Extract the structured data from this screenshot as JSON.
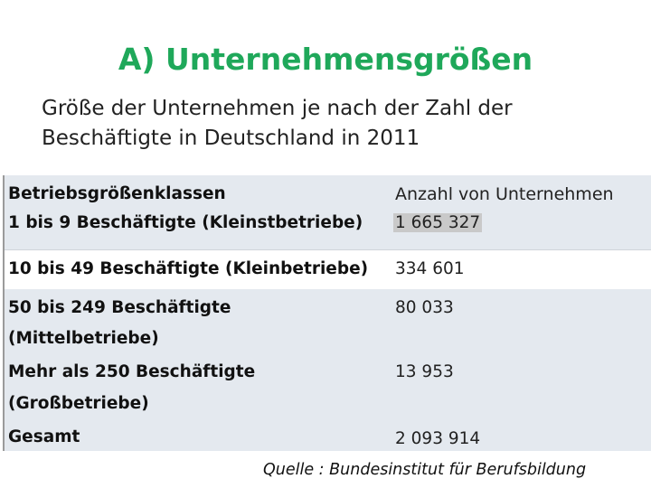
{
  "title": "A) Unternehmensgrößen",
  "subtitle": {
    "line1": "Größe der Unternehmen je nach der Zahl der",
    "line2": "Beschäftigte in Deutschland in 2011"
  },
  "table": {
    "header_col1": "Betriebsgrößenklassen",
    "header_col2": "Anzahl von Unternehmen",
    "rows": [
      {
        "label": "1 bis 9 Beschäftigte (Kleinstbetriebe)",
        "value": "1 665 327"
      },
      {
        "label": "10 bis 49 Beschäftigte (Kleinbetriebe)",
        "value": "334 601"
      },
      {
        "label_line1": "50 bis 249 Beschäftigte",
        "label_line2": "(Mittelbetriebe)",
        "value": "80 033"
      },
      {
        "label_line1": "Mehr als 250 Beschäftigte",
        "label_line2": "(Großbetriebe)",
        "value": "13 953"
      },
      {
        "label": "Gesamt",
        "value": "2 093 914"
      }
    ]
  },
  "source": "Quelle : Bundesinstitut für Berufsbildung",
  "colors": {
    "title": "#1fa85a",
    "band": "#e4e9ef",
    "highlight": "#c9c9c9"
  }
}
